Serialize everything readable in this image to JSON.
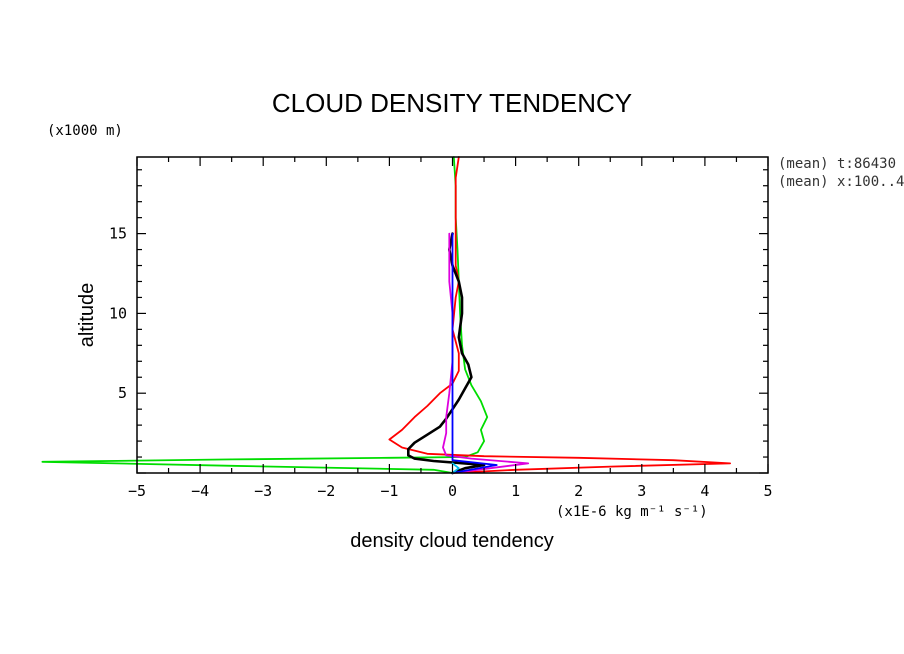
{
  "chart_data": {
    "type": "line",
    "title": "CLOUD DENSITY TENDENCY",
    "xlabel": "density cloud tendency",
    "xunit": "(x1E-6 kg m⁻¹ s⁻¹)",
    "ylabel": "altitude",
    "yunit": "(x1000 m)",
    "xlim": [
      -5,
      5
    ],
    "ylim": [
      0,
      19.8
    ],
    "xticks": [
      -5,
      -4,
      -3,
      -2,
      -1,
      0,
      1,
      2,
      3,
      4,
      5
    ],
    "yticks": [
      5,
      10,
      15
    ],
    "grid": false,
    "annotations": [
      "(mean) t:86430",
      "(mean) x:100..4"
    ],
    "series": [
      {
        "color": "#00dd00",
        "points": [
          [
            0.0,
            0.0
          ],
          [
            -0.3,
            0.2
          ],
          [
            -3.5,
            0.45
          ],
          [
            -6.5,
            0.7
          ],
          [
            -3.5,
            0.85
          ],
          [
            -1.0,
            0.95
          ],
          [
            0.2,
            1.0
          ],
          [
            0.4,
            1.3
          ],
          [
            0.5,
            2.0
          ],
          [
            0.45,
            2.7
          ],
          [
            0.55,
            3.5
          ],
          [
            0.45,
            4.5
          ],
          [
            0.3,
            5.5
          ],
          [
            0.2,
            6.5
          ],
          [
            0.15,
            8
          ],
          [
            0.12,
            10
          ],
          [
            0.1,
            12
          ],
          [
            0.08,
            14
          ],
          [
            0.05,
            16
          ],
          [
            0.05,
            18
          ],
          [
            0.02,
            19.8
          ]
        ]
      },
      {
        "color": "#ff0000",
        "points": [
          [
            0.0,
            0.0
          ],
          [
            1.0,
            0.2
          ],
          [
            2.5,
            0.4
          ],
          [
            4.4,
            0.6
          ],
          [
            3.5,
            0.8
          ],
          [
            2.0,
            0.95
          ],
          [
            0.5,
            1.05
          ],
          [
            -0.4,
            1.2
          ],
          [
            -0.8,
            1.6
          ],
          [
            -1.0,
            2.1
          ],
          [
            -0.8,
            2.7
          ],
          [
            -0.6,
            3.5
          ],
          [
            -0.4,
            4.2
          ],
          [
            -0.2,
            5.0
          ],
          [
            0.0,
            5.6
          ],
          [
            0.1,
            6.4
          ],
          [
            0.1,
            7.5
          ],
          [
            0.0,
            9
          ],
          [
            0.05,
            11
          ],
          [
            0.1,
            12
          ],
          [
            0.05,
            13
          ],
          [
            0.05,
            15
          ],
          [
            0.05,
            17
          ],
          [
            0.05,
            18.5
          ],
          [
            0.1,
            19.8
          ]
        ]
      },
      {
        "color": "#000000",
        "points": [
          [
            0.0,
            0.0
          ],
          [
            0.2,
            0.3
          ],
          [
            0.5,
            0.5
          ],
          [
            0.2,
            0.6
          ],
          [
            -0.3,
            0.75
          ],
          [
            -0.6,
            0.9
          ],
          [
            -0.7,
            1.1
          ],
          [
            -0.7,
            1.5
          ],
          [
            -0.6,
            1.9
          ],
          [
            -0.4,
            2.4
          ],
          [
            -0.2,
            2.9
          ],
          [
            -0.1,
            3.4
          ],
          [
            0.0,
            4.0
          ],
          [
            0.1,
            4.6
          ],
          [
            0.2,
            5.3
          ],
          [
            0.3,
            6.0
          ],
          [
            0.25,
            6.8
          ],
          [
            0.15,
            7.5
          ],
          [
            0.1,
            8.5
          ],
          [
            0.15,
            10
          ],
          [
            0.15,
            11
          ],
          [
            0.1,
            12
          ],
          [
            0.0,
            13
          ],
          [
            -0.05,
            14
          ],
          [
            0.0,
            15
          ]
        ]
      },
      {
        "color": "#dd00dd",
        "points": [
          [
            0.0,
            0.0
          ],
          [
            0.6,
            0.3
          ],
          [
            1.2,
            0.6
          ],
          [
            0.3,
            0.9
          ],
          [
            -0.1,
            1.1
          ],
          [
            -0.15,
            1.6
          ],
          [
            -0.1,
            2.5
          ],
          [
            -0.1,
            3.5
          ],
          [
            -0.05,
            5
          ],
          [
            0.0,
            7
          ],
          [
            0.0,
            10
          ],
          [
            -0.05,
            12
          ],
          [
            -0.05,
            15
          ]
        ]
      },
      {
        "color": "#0000ff",
        "points": [
          [
            0.0,
            0.0
          ],
          [
            0.7,
            0.5
          ],
          [
            0.0,
            0.8
          ],
          [
            0.0,
            3
          ],
          [
            0.0,
            6
          ],
          [
            0.0,
            9
          ],
          [
            0.0,
            12
          ],
          [
            0.0,
            15
          ]
        ]
      },
      {
        "color": "#00bbee",
        "points": [
          [
            0.0,
            0.0
          ],
          [
            0.1,
            0.3
          ],
          [
            0.0,
            0.6
          ]
        ]
      }
    ]
  }
}
